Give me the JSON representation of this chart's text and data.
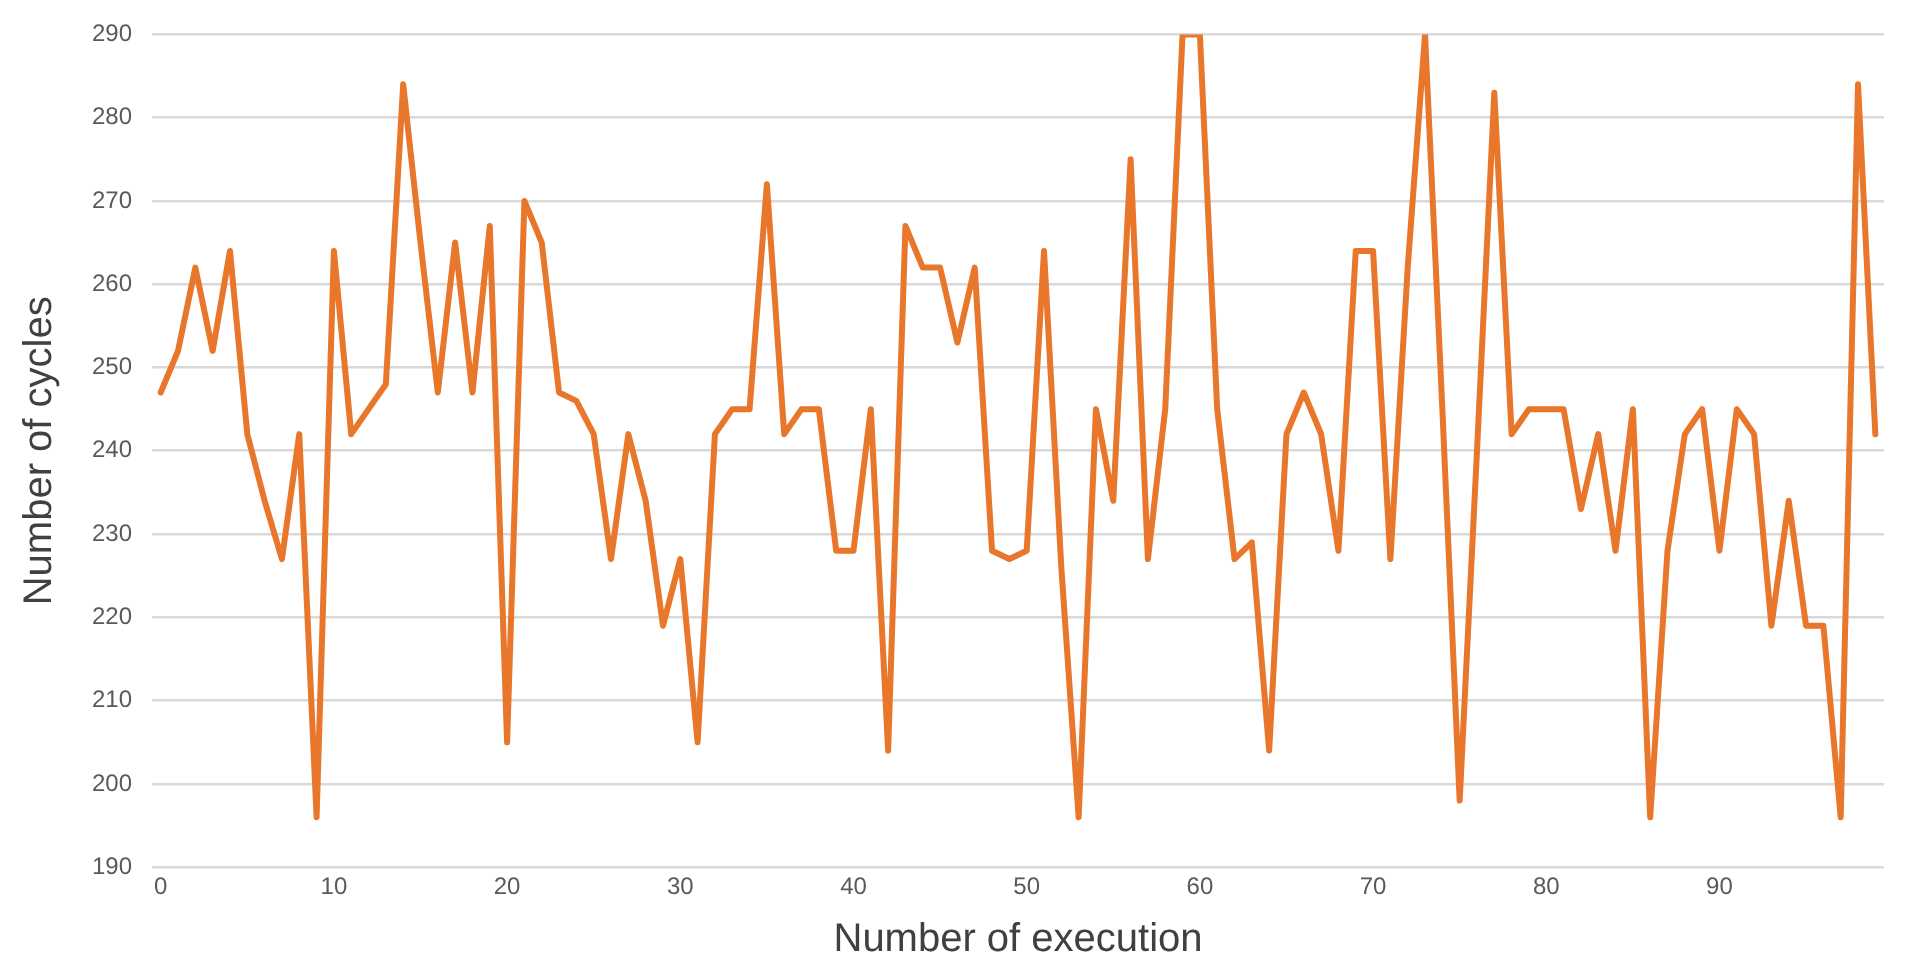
{
  "chart_data": {
    "type": "line",
    "xlabel": "Number of execution",
    "ylabel": "Number of cycles",
    "x": [
      0,
      1,
      2,
      3,
      4,
      5,
      6,
      7,
      8,
      9,
      10,
      11,
      12,
      13,
      14,
      15,
      16,
      17,
      18,
      19,
      20,
      21,
      22,
      23,
      24,
      25,
      26,
      27,
      28,
      29,
      30,
      31,
      32,
      33,
      34,
      35,
      36,
      37,
      38,
      39,
      40,
      41,
      42,
      43,
      44,
      45,
      46,
      47,
      48,
      49,
      50,
      51,
      52,
      53,
      54,
      55,
      56,
      57,
      58,
      59,
      60,
      61,
      62,
      63,
      64,
      65,
      66,
      67,
      68,
      69,
      70,
      71,
      72,
      73,
      74,
      75,
      76,
      77,
      78,
      79,
      80,
      81,
      82,
      83,
      84,
      85,
      86,
      87,
      88,
      89,
      90,
      91,
      92,
      93,
      94,
      95,
      96,
      97,
      98,
      99
    ],
    "series": [
      {
        "color": "#e8762b",
        "values": [
          247,
          252,
          262,
          252,
          264,
          242,
          234,
          227,
          242,
          196,
          264,
          242,
          245,
          248,
          284,
          265,
          247,
          265,
          247,
          267,
          205,
          270,
          265,
          247,
          246,
          242,
          227,
          242,
          234,
          219,
          227,
          205,
          242,
          245,
          245,
          272,
          242,
          245,
          245,
          228,
          228,
          245,
          204,
          267,
          262,
          262,
          253,
          262,
          228,
          227,
          228,
          264,
          226,
          196,
          245,
          234,
          275,
          227,
          245,
          290,
          290,
          245,
          227,
          229,
          204,
          242,
          247,
          242,
          228,
          264,
          264,
          227,
          262,
          290,
          245,
          198,
          240,
          283,
          242,
          245,
          245,
          245,
          233,
          242,
          228,
          245,
          196,
          228,
          242,
          245,
          228,
          245,
          242,
          219,
          234,
          219,
          219,
          196,
          284,
          242
        ]
      }
    ],
    "xlim": [
      -0.5,
      99.5
    ],
    "xticks": [
      0,
      10,
      20,
      30,
      40,
      50,
      60,
      70,
      80,
      90
    ],
    "ylim": [
      190,
      290
    ],
    "yticks": [
      190,
      200,
      210,
      220,
      230,
      240,
      250,
      260,
      270,
      280,
      290
    ],
    "grid": "y",
    "marker": "none",
    "line_style": "solid",
    "legend": false
  }
}
